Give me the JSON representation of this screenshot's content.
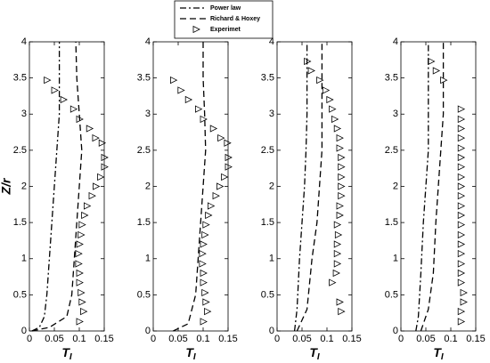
{
  "chart_data": [
    {
      "type": "line",
      "ylabel": "Z/r",
      "xlabel": "T",
      "xlabel_subscript": "I",
      "xlim": [
        0,
        0.15
      ],
      "xticks": [
        0,
        0.05,
        0.1,
        0.15
      ],
      "ylim": [
        0,
        4
      ],
      "yticks": [
        0,
        0.5,
        1,
        1.5,
        2,
        2.5,
        3,
        3.5,
        4
      ],
      "series": [
        {
          "name": "Power law",
          "style": "dash-dot",
          "color": "#000000",
          "x": [
            0.005,
            0.02,
            0.03,
            0.035,
            0.04,
            0.045,
            0.05,
            0.055,
            0.06,
            0.06,
            0.06
          ],
          "y": [
            0,
            0.05,
            0.2,
            0.5,
            1,
            1.5,
            2,
            2.5,
            3,
            3.5,
            4
          ]
        },
        {
          "name": "Richard & Hoxey",
          "style": "dashed",
          "color": "#000000",
          "x": [
            0.005,
            0.04,
            0.075,
            0.085,
            0.09,
            0.095,
            0.1,
            0.105,
            0.1,
            0.095,
            0.093
          ],
          "y": [
            0,
            0.05,
            0.2,
            0.5,
            1,
            1.5,
            2,
            2.5,
            3,
            3.5,
            4
          ]
        },
        {
          "name": "Experimet",
          "style": "triangle",
          "color": "#000000",
          "x": [
            0.035,
            0.05,
            0.068,
            0.088,
            0.1,
            0.12,
            0.132,
            0.145,
            0.15,
            0.15,
            0.142,
            0.133,
            0.125,
            0.115,
            0.11,
            0.105,
            0.103,
            0.1,
            0.098,
            0.098,
            0.1,
            0.1,
            0.103,
            0.105,
            0.108,
            0.1
          ],
          "y": [
            3.47,
            3.33,
            3.2,
            3.07,
            2.93,
            2.8,
            2.67,
            2.6,
            2.4,
            2.27,
            2.13,
            2.0,
            1.87,
            1.73,
            1.6,
            1.47,
            1.33,
            1.2,
            1.07,
            0.93,
            0.8,
            0.67,
            0.53,
            0.4,
            0.27,
            0.13
          ]
        }
      ]
    },
    {
      "type": "line",
      "xlabel": "T",
      "xlabel_subscript": "I",
      "xlim": [
        0,
        0.15
      ],
      "xticks": [
        0,
        0.05,
        0.1,
        0.15
      ],
      "ylim": [
        0,
        4
      ],
      "yticks": [
        0,
        0.5,
        1,
        1.5,
        2,
        2.5,
        3,
        3.5,
        4
      ],
      "series": [
        {
          "style": "dashed",
          "color": "#000000",
          "x": [
            0.04,
            0.07,
            0.085,
            0.09,
            0.095,
            0.1,
            0.105,
            0.103,
            0.1,
            0.1
          ],
          "y": [
            0,
            0.1,
            0.5,
            1,
            1.5,
            2,
            2.5,
            3,
            3.5,
            4
          ]
        },
        {
          "style": "triangle",
          "color": "#000000",
          "x": [
            0.04,
            0.055,
            0.07,
            0.09,
            0.1,
            0.12,
            0.135,
            0.148,
            0.15,
            0.15,
            0.142,
            0.133,
            0.125,
            0.115,
            0.11,
            0.105,
            0.103,
            0.1,
            0.098,
            0.098,
            0.1,
            0.1,
            0.103,
            0.105,
            0.108,
            0.1
          ],
          "y": [
            3.47,
            3.33,
            3.2,
            3.07,
            2.93,
            2.8,
            2.67,
            2.6,
            2.4,
            2.27,
            2.13,
            2.0,
            1.87,
            1.73,
            1.6,
            1.47,
            1.33,
            1.2,
            1.07,
            0.93,
            0.8,
            0.67,
            0.53,
            0.4,
            0.27,
            0.13
          ]
        }
      ]
    },
    {
      "type": "line",
      "xlabel": "T",
      "xlabel_subscript": "I",
      "xlim": [
        0,
        0.15
      ],
      "xticks": [
        0,
        0.05,
        0.1,
        0.15
      ],
      "ylim": [
        0,
        4
      ],
      "yticks": [
        0,
        0.5,
        1,
        1.5,
        2,
        2.5,
        3,
        3.5,
        4
      ],
      "series": [
        {
          "style": "dash-dot",
          "color": "#000000",
          "x": [
            0.035,
            0.04,
            0.045,
            0.05,
            0.055,
            0.058,
            0.06,
            0.06
          ],
          "y": [
            0,
            0.3,
            1,
            1.5,
            2,
            2.5,
            3,
            4
          ]
        },
        {
          "style": "dashed",
          "color": "#000000",
          "x": [
            0.04,
            0.06,
            0.07,
            0.08,
            0.085,
            0.09,
            0.09,
            0.09
          ],
          "y": [
            0,
            0.3,
            1,
            1.5,
            2,
            2.5,
            3,
            4
          ]
        },
        {
          "style": "triangle",
          "color": "#000000",
          "x": [
            0.06,
            0.068,
            0.085,
            0.097,
            0.105,
            0.11,
            0.115,
            0.12,
            0.125,
            0.125,
            0.128,
            0.128,
            0.128,
            0.128,
            0.128,
            0.125,
            0.125,
            0.12,
            0.122,
            0.12,
            0.12,
            0.12,
            0.118,
            0.11,
            0.125,
            0.128
          ],
          "y": [
            3.73,
            3.6,
            3.47,
            3.33,
            3.2,
            3.07,
            2.93,
            2.8,
            2.67,
            2.53,
            2.4,
            2.27,
            2.13,
            2.0,
            1.87,
            1.73,
            1.6,
            1.47,
            1.33,
            1.2,
            1.07,
            0.93,
            0.8,
            0.67,
            0.4,
            0.27
          ]
        }
      ]
    },
    {
      "type": "line",
      "xlabel": "T",
      "xlabel_subscript": "I",
      "xlim": [
        0,
        0.15
      ],
      "xticks": [
        0,
        0.05,
        0.1,
        0.15
      ],
      "ylim": [
        0,
        4
      ],
      "yticks": [
        0,
        0.5,
        1,
        1.5,
        2,
        2.5,
        3,
        3.5,
        4
      ],
      "series": [
        {
          "style": "dash-dot",
          "color": "#000000",
          "x": [
            0.03,
            0.035,
            0.04,
            0.045,
            0.05,
            0.055,
            0.055,
            0.055
          ],
          "y": [
            0,
            0.2,
            0.8,
            1.5,
            2,
            2.5,
            3,
            4
          ]
        },
        {
          "style": "dashed",
          "color": "#000000",
          "x": [
            0.04,
            0.055,
            0.065,
            0.07,
            0.075,
            0.08,
            0.085,
            0.085
          ],
          "y": [
            0,
            0.3,
            0.8,
            1.5,
            2,
            2.5,
            3,
            4
          ]
        },
        {
          "style": "triangle",
          "color": "#000000",
          "x": [
            0.06,
            0.07,
            0.085,
            0.12,
            0.12,
            0.12,
            0.12,
            0.12,
            0.12,
            0.12,
            0.12,
            0.12,
            0.12,
            0.12,
            0.12,
            0.12,
            0.12,
            0.12,
            0.12,
            0.12,
            0.12,
            0.12,
            0.125,
            0.125,
            0.12,
            0.12
          ],
          "y": [
            3.73,
            3.6,
            3.47,
            3.07,
            2.93,
            2.8,
            2.67,
            2.53,
            2.4,
            2.27,
            2.13,
            2.0,
            1.87,
            1.73,
            1.6,
            1.47,
            1.33,
            1.2,
            1.07,
            0.93,
            0.8,
            0.67,
            0.53,
            0.4,
            0.27,
            0.13
          ]
        }
      ]
    }
  ]
}
